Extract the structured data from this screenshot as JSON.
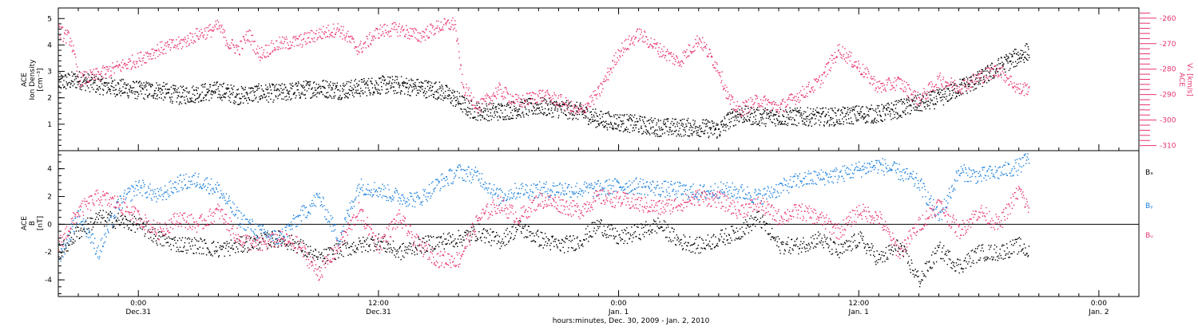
{
  "chart_data": [
    {
      "type": "scatter",
      "xlabel": "hours:minutes, Dec. 30, 2009 - Jan. 2, 2010",
      "x_ticks": [
        {
          "hours": 0,
          "time": "0:00",
          "date": "Dec.31"
        },
        {
          "hours": 12,
          "time": "12:00",
          "date": "Dec.31"
        },
        {
          "hours": 24,
          "time": "0:00",
          "date": "Jan. 1"
        },
        {
          "hours": 36,
          "time": "12:00",
          "date": "Jan. 1"
        },
        {
          "hours": 48,
          "time": "0:00",
          "date": "Jan. 2"
        }
      ],
      "xlim_hours": [
        -4,
        50
      ],
      "ylabel_left": [
        "ACE",
        "Ion Density",
        "[cm⁻³]"
      ],
      "ylim_left": [
        0,
        5.4
      ],
      "yticks_left": [
        1,
        2,
        3,
        4,
        5
      ],
      "ylabel_right": [
        "ACE",
        "Vₓ [km/s]"
      ],
      "ylim_right": [
        -312,
        -256
      ],
      "yticks_right": [
        -260,
        -270,
        -280,
        -290,
        -300,
        -310
      ],
      "series": [
        {
          "color": "#000000",
          "axis": "left",
          "keypoints": [
            [
              -4,
              2.6
            ],
            [
              -3,
              2.7
            ],
            [
              -2,
              2.5
            ],
            [
              -1,
              2.4
            ],
            [
              0,
              2.3
            ],
            [
              1,
              2.3
            ],
            [
              2,
              2.1
            ],
            [
              3,
              2.2
            ],
            [
              4,
              2.3
            ],
            [
              5,
              2.1
            ],
            [
              6,
              2.2
            ],
            [
              7,
              2.2
            ],
            [
              8,
              2.3
            ],
            [
              9,
              2.4
            ],
            [
              10,
              2.3
            ],
            [
              11,
              2.4
            ],
            [
              12,
              2.5
            ],
            [
              13,
              2.5
            ],
            [
              14,
              2.4
            ],
            [
              15,
              2.3
            ],
            [
              15.8,
              2.0
            ],
            [
              16.5,
              1.6
            ],
            [
              17,
              1.5
            ],
            [
              18,
              1.5
            ],
            [
              19,
              1.6
            ],
            [
              20,
              1.7
            ],
            [
              21,
              1.6
            ],
            [
              22,
              1.5
            ],
            [
              23,
              1.2
            ],
            [
              24,
              1.1
            ],
            [
              25,
              1.0
            ],
            [
              26,
              0.9
            ],
            [
              27,
              0.9
            ],
            [
              28,
              0.9
            ],
            [
              29,
              0.8
            ],
            [
              29.5,
              1.2
            ],
            [
              30,
              1.4
            ],
            [
              31,
              1.3
            ],
            [
              32,
              1.3
            ],
            [
              33,
              1.3
            ],
            [
              34,
              1.3
            ],
            [
              35,
              1.3
            ],
            [
              36,
              1.4
            ],
            [
              37,
              1.4
            ],
            [
              38,
              1.6
            ],
            [
              39,
              1.8
            ],
            [
              40,
              2.0
            ],
            [
              41,
              2.4
            ],
            [
              42,
              2.7
            ],
            [
              43,
              3.2
            ],
            [
              44,
              3.6
            ],
            [
              44.5,
              3.8
            ]
          ]
        },
        {
          "color": "#e8336d",
          "axis": "right",
          "keypoints": [
            [
              -4,
              -265
            ],
            [
              -3.4,
              -268
            ],
            [
              -3,
              -284
            ],
            [
              -2,
              -282
            ],
            [
              -1,
              -279
            ],
            [
              0,
              -276
            ],
            [
              1,
              -272
            ],
            [
              2,
              -270
            ],
            [
              3,
              -266
            ],
            [
              3.5,
              -265
            ],
            [
              4,
              -263
            ],
            [
              4.5,
              -270
            ],
            [
              5,
              -272
            ],
            [
              5.5,
              -266
            ],
            [
              6,
              -274
            ],
            [
              7,
              -270
            ],
            [
              8,
              -269
            ],
            [
              9,
              -266
            ],
            [
              10,
              -264
            ],
            [
              11,
              -272
            ],
            [
              12,
              -265
            ],
            [
              13,
              -264
            ],
            [
              14,
              -267
            ],
            [
              15,
              -263
            ],
            [
              15.8,
              -262
            ],
            [
              16.2,
              -287
            ],
            [
              17,
              -295
            ],
            [
              18,
              -288
            ],
            [
              19,
              -293
            ],
            [
              20,
              -290
            ],
            [
              21,
              -292
            ],
            [
              22,
              -297
            ],
            [
              23,
              -289
            ],
            [
              24,
              -273
            ],
            [
              25,
              -266
            ],
            [
              26,
              -272
            ],
            [
              27,
              -277
            ],
            [
              28,
              -268
            ],
            [
              29,
              -280
            ],
            [
              29.5,
              -292
            ],
            [
              30,
              -296
            ],
            [
              31,
              -292
            ],
            [
              32,
              -295
            ],
            [
              33,
              -290
            ],
            [
              34,
              -285
            ],
            [
              35,
              -272
            ],
            [
              36,
              -279
            ],
            [
              37,
              -287
            ],
            [
              38,
              -285
            ],
            [
              39,
              -292
            ],
            [
              40,
              -284
            ],
            [
              41,
              -287
            ],
            [
              42,
              -283
            ],
            [
              43,
              -280
            ],
            [
              44,
              -288
            ],
            [
              44.5,
              -287
            ]
          ]
        }
      ]
    },
    {
      "type": "scatter",
      "xlabel": "hours:minutes, Dec. 30, 2009 - Jan. 2, 2010",
      "xlim_hours": [
        -4,
        50
      ],
      "ylabel": [
        "ACE",
        "B",
        "[nT]"
      ],
      "ylim": [
        -5.2,
        5.3
      ],
      "yticks": [
        -4,
        -2,
        0,
        2,
        4
      ],
      "zero_line": true,
      "series": [
        {
          "name": "Bₓ",
          "color": "#000000",
          "keypoints": [
            [
              -4,
              -2.0
            ],
            [
              -3,
              -0.5
            ],
            [
              -2,
              0.5
            ],
            [
              -1,
              0.3
            ],
            [
              0,
              0.0
            ],
            [
              1,
              -1.0
            ],
            [
              2,
              -1.4
            ],
            [
              3,
              -1.5
            ],
            [
              4,
              -1.8
            ],
            [
              5,
              -1.5
            ],
            [
              6,
              -1.2
            ],
            [
              7,
              -1.0
            ],
            [
              8,
              -1.5
            ],
            [
              9,
              -2.5
            ],
            [
              10,
              -1.8
            ],
            [
              11,
              -1.5
            ],
            [
              12,
              -1.2
            ],
            [
              13,
              -2.0
            ],
            [
              14,
              -1.5
            ],
            [
              15,
              -1.2
            ],
            [
              16,
              -1.0
            ],
            [
              17,
              -0.5
            ],
            [
              18,
              -1.2
            ],
            [
              19,
              -0.2
            ],
            [
              20,
              -1.0
            ],
            [
              21,
              -1.5
            ],
            [
              22,
              -1.2
            ],
            [
              23,
              0.0
            ],
            [
              24,
              -1.0
            ],
            [
              25,
              -0.5
            ],
            [
              26,
              0.0
            ],
            [
              27,
              -1.2
            ],
            [
              28,
              -1.5
            ],
            [
              29,
              -1.0
            ],
            [
              30,
              -0.5
            ],
            [
              31,
              0.5
            ],
            [
              32,
              -1.5
            ],
            [
              33,
              -1.5
            ],
            [
              34,
              -1.0
            ],
            [
              35,
              -2.0
            ],
            [
              36,
              -1.0
            ],
            [
              37,
              -2.5
            ],
            [
              38,
              -1.5
            ],
            [
              39,
              -4.0
            ],
            [
              40,
              -1.8
            ],
            [
              41,
              -3.0
            ],
            [
              42,
              -2.0
            ],
            [
              43,
              -2.0
            ],
            [
              44,
              -1.5
            ],
            [
              44.5,
              -2.0
            ]
          ]
        },
        {
          "name": "Bᵧ",
          "color": "#1a7fdd",
          "keypoints": [
            [
              -4,
              -2.5
            ],
            [
              -3,
              0.8
            ],
            [
              -2,
              -2.0
            ],
            [
              -1,
              1.5
            ],
            [
              0,
              2.8
            ],
            [
              1,
              2.0
            ],
            [
              2,
              3.0
            ],
            [
              3,
              3.2
            ],
            [
              4,
              2.5
            ],
            [
              5,
              0.5
            ],
            [
              6,
              -0.5
            ],
            [
              7,
              -1.0
            ],
            [
              8,
              0.5
            ],
            [
              9,
              2.0
            ],
            [
              10,
              -1.0
            ],
            [
              11,
              2.8
            ],
            [
              12,
              2.5
            ],
            [
              13,
              2.0
            ],
            [
              14,
              1.8
            ],
            [
              15,
              3.0
            ],
            [
              16,
              3.8
            ],
            [
              17,
              3.5
            ],
            [
              18,
              2.0
            ],
            [
              19,
              2.5
            ],
            [
              20,
              2.5
            ],
            [
              21,
              2.6
            ],
            [
              22,
              2.5
            ],
            [
              23,
              2.6
            ],
            [
              24,
              2.8
            ],
            [
              25,
              2.8
            ],
            [
              26,
              2.6
            ],
            [
              27,
              2.5
            ],
            [
              28,
              2.3
            ],
            [
              29,
              2.5
            ],
            [
              30,
              2.4
            ],
            [
              31,
              2.0
            ],
            [
              32,
              2.6
            ],
            [
              33,
              3.2
            ],
            [
              34,
              3.4
            ],
            [
              35,
              3.6
            ],
            [
              36,
              4.0
            ],
            [
              37,
              4.3
            ],
            [
              38,
              3.8
            ],
            [
              39,
              3.0
            ],
            [
              40,
              0.5
            ],
            [
              41,
              3.8
            ],
            [
              42,
              3.5
            ],
            [
              43,
              3.8
            ],
            [
              44,
              4.2
            ],
            [
              44.5,
              4.8
            ]
          ]
        },
        {
          "name": "Bᵤ",
          "color": "#e8336d",
          "keypoints": [
            [
              -4,
              -1.5
            ],
            [
              -3,
              1.0
            ],
            [
              -2,
              2.0
            ],
            [
              -1,
              1.5
            ],
            [
              0,
              0.5
            ],
            [
              1,
              -0.5
            ],
            [
              2,
              0.5
            ],
            [
              3,
              0.0
            ],
            [
              4,
              1.0
            ],
            [
              5,
              -1.0
            ],
            [
              6,
              -1.5
            ],
            [
              7,
              -1.0
            ],
            [
              8,
              -1.5
            ],
            [
              9,
              -3.5
            ],
            [
              10,
              -1.5
            ],
            [
              11,
              1.0
            ],
            [
              12,
              -1.5
            ],
            [
              13,
              0.5
            ],
            [
              14,
              -1.5
            ],
            [
              15,
              -2.5
            ],
            [
              16,
              -2.5
            ],
            [
              17,
              0.5
            ],
            [
              18,
              1.5
            ],
            [
              19,
              0.5
            ],
            [
              20,
              1.8
            ],
            [
              21,
              1.5
            ],
            [
              22,
              1.0
            ],
            [
              23,
              2.0
            ],
            [
              24,
              1.8
            ],
            [
              25,
              1.5
            ],
            [
              26,
              1.2
            ],
            [
              27,
              1.5
            ],
            [
              28,
              2.0
            ],
            [
              29,
              1.8
            ],
            [
              30,
              1.0
            ],
            [
              31,
              1.5
            ],
            [
              32,
              0.5
            ],
            [
              33,
              1.0
            ],
            [
              34,
              0.5
            ],
            [
              35,
              -0.5
            ],
            [
              36,
              1.0
            ],
            [
              37,
              0.5
            ],
            [
              38,
              -2.0
            ],
            [
              39,
              0.0
            ],
            [
              40,
              1.5
            ],
            [
              41,
              -0.5
            ],
            [
              42,
              1.0
            ],
            [
              43,
              0.0
            ],
            [
              44,
              2.5
            ],
            [
              44.5,
              1.0
            ]
          ]
        }
      ]
    }
  ]
}
